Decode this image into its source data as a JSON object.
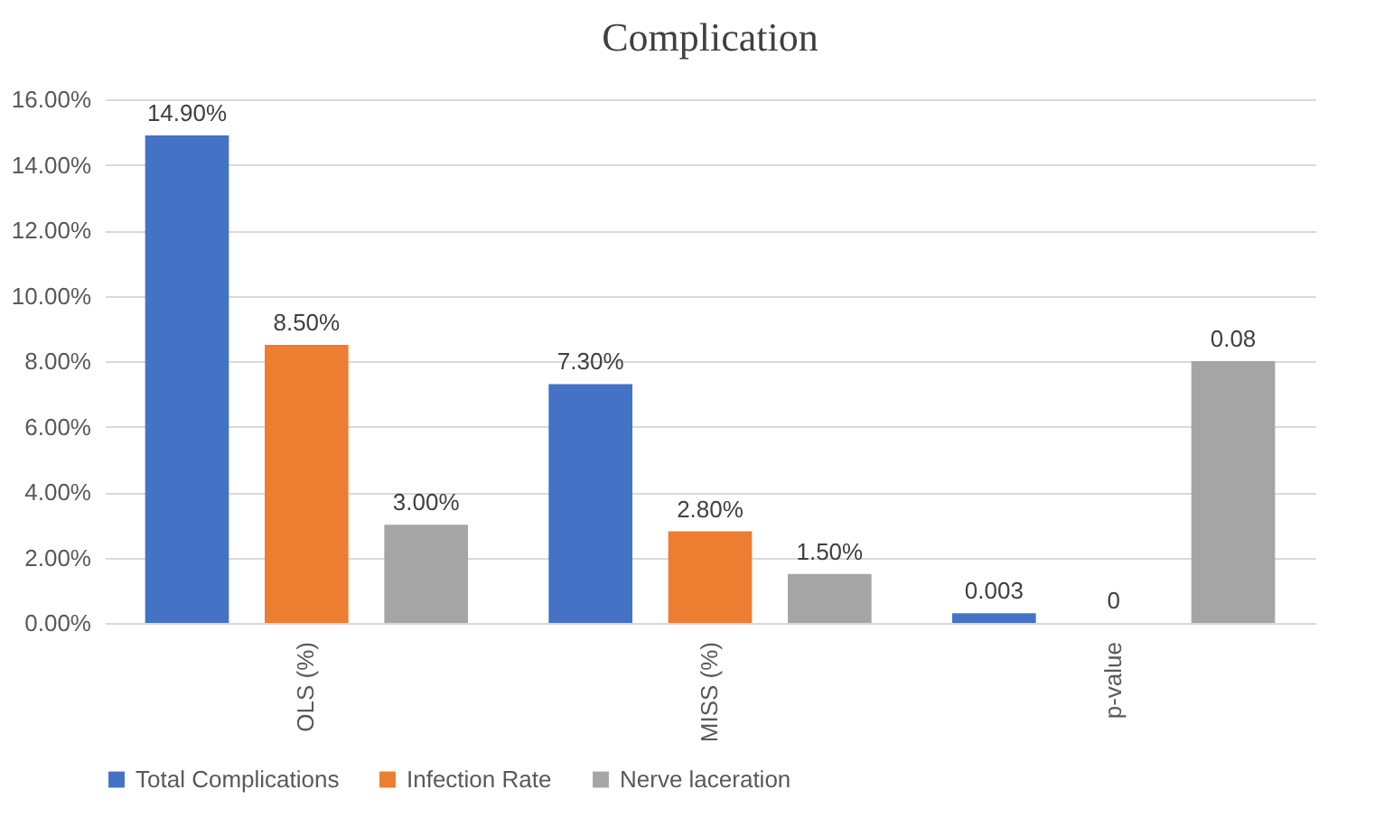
{
  "chart_data": {
    "type": "bar",
    "title": "Complication",
    "categories": [
      "OLS (%)",
      "MISS (%)",
      "p-value"
    ],
    "series": [
      {
        "name": "Total Complications",
        "color": "#4472c4",
        "values": [
          0.149,
          0.073,
          0.003
        ],
        "value_labels": [
          "14.90%",
          "7.30%",
          "0.003"
        ]
      },
      {
        "name": "Infection Rate",
        "color": "#ed7d31",
        "values": [
          0.085,
          0.028,
          0
        ],
        "value_labels": [
          "8.50%",
          "2.80%",
          "0"
        ]
      },
      {
        "name": "Nerve laceration",
        "color": "#a5a5a5",
        "values": [
          0.03,
          0.015,
          0.08
        ],
        "value_labels": [
          "3.00%",
          "1.50%",
          "0.08"
        ]
      }
    ],
    "ylim": [
      0,
      0.16
    ],
    "yticks": [
      {
        "value": 0,
        "label": "0.00%"
      },
      {
        "value": 0.02,
        "label": "2.00%"
      },
      {
        "value": 0.04,
        "label": "4.00%"
      },
      {
        "value": 0.06,
        "label": "6.00%"
      },
      {
        "value": 0.08,
        "label": "8.00%"
      },
      {
        "value": 0.1,
        "label": "10.00%"
      },
      {
        "value": 0.12,
        "label": "12.00%"
      },
      {
        "value": 0.14,
        "label": "14.00%"
      },
      {
        "value": 0.16,
        "label": "16.00%"
      }
    ],
    "grid": "y",
    "legend": "bottom"
  }
}
